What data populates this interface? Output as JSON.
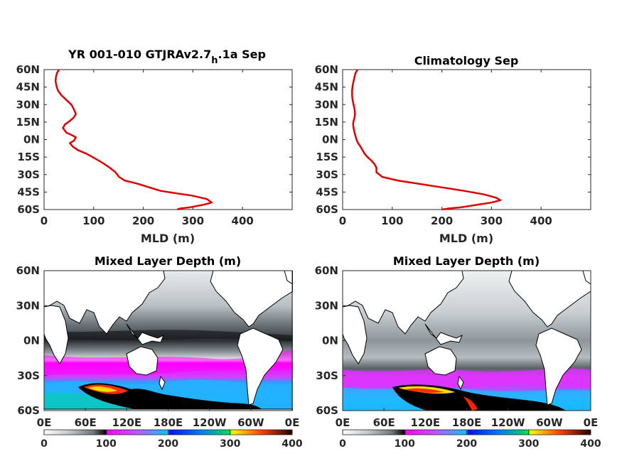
{
  "chart_data": [
    {
      "type": "line",
      "title_main": "YR 001-010 GTJRAv2.7",
      "title_sub": "h",
      "title_tail": ".1a Sep",
      "xlabel": "MLD (m)",
      "ylabel": "",
      "xlim": [
        0,
        500
      ],
      "ylim": [
        -60,
        60
      ],
      "xticks": [
        0,
        100,
        200,
        300,
        400
      ],
      "xtick_labels": [
        "0",
        "100",
        "200",
        "300",
        "400"
      ],
      "yticks": [
        60,
        45,
        30,
        15,
        0,
        -15,
        -30,
        -45,
        -60
      ],
      "ytick_labels": [
        "60N",
        "45N",
        "30N",
        "15N",
        "0N",
        "15S",
        "30S",
        "45S",
        "60S"
      ],
      "series": [
        {
          "color": "#e00000",
          "x": [
            30,
            26,
            24,
            23,
            25,
            28,
            35,
            45,
            55,
            60,
            64,
            60,
            52,
            42,
            38,
            45,
            55,
            64,
            60,
            52,
            58,
            68,
            85,
            102,
            118,
            132,
            144,
            151,
            162,
            190,
            212,
            235,
            265,
            298,
            328,
            338,
            320,
            295,
            275,
            268
          ],
          "y": [
            60,
            57,
            54,
            50,
            46,
            42,
            38,
            34,
            30,
            26,
            22,
            19,
            16,
            13,
            10,
            6,
            4,
            2,
            -1,
            -3,
            -6,
            -9,
            -12,
            -16,
            -20,
            -24,
            -28,
            -32,
            -35,
            -38,
            -41,
            -44,
            -46,
            -48,
            -51,
            -54,
            -56,
            -58,
            -59,
            -60
          ]
        }
      ]
    },
    {
      "type": "line",
      "title_main": "Climatology Sep",
      "xlabel": "MLD (m)",
      "ylabel": "",
      "xlim": [
        0,
        500
      ],
      "ylim": [
        -60,
        60
      ],
      "xticks": [
        0,
        100,
        200,
        300,
        400
      ],
      "xtick_labels": [
        "0",
        "100",
        "200",
        "300",
        "400"
      ],
      "yticks": [
        60,
        45,
        30,
        15,
        0,
        -15,
        -30,
        -45,
        -60
      ],
      "ytick_labels": [
        "60N",
        "45N",
        "30N",
        "15N",
        "0N",
        "15S",
        "30S",
        "45S",
        "60S"
      ],
      "series": [
        {
          "color": "#e00000",
          "x": [
            30,
            26,
            24,
            22,
            20,
            19,
            19,
            20,
            22,
            24,
            25,
            24,
            22,
            21,
            22,
            24,
            26,
            28,
            31,
            36,
            40,
            44,
            50,
            58,
            64,
            68,
            68,
            80,
            110,
            155,
            200,
            245,
            285,
            310,
            318,
            300,
            270,
            240,
            215,
            200
          ],
          "y": [
            60,
            57,
            54,
            50,
            46,
            42,
            38,
            34,
            30,
            26,
            22,
            19,
            16,
            13,
            10,
            6,
            3,
            0,
            -3,
            -6,
            -9,
            -12,
            -15,
            -18,
            -21,
            -24,
            -28,
            -32,
            -35,
            -38,
            -41,
            -44,
            -47,
            -50,
            -52,
            -54,
            -56,
            -58,
            -59,
            -60
          ]
        }
      ]
    },
    {
      "type": "heatmap",
      "title_main": "Mixed Layer Depth (m)",
      "xtick_labels": [
        "0E",
        "60E",
        "120E",
        "180E",
        "120W",
        "60W",
        "0E"
      ],
      "ytick_labels": [
        "60N",
        "30N",
        "0N",
        "30S",
        "60S"
      ],
      "colorbar": {
        "min": 0,
        "max": 400,
        "tick_labels": [
          "0",
          "100",
          "200",
          "300",
          "400"
        ]
      }
    },
    {
      "type": "heatmap",
      "title_main": "Mixed Layer Depth (m)",
      "xtick_labels": [
        "0E",
        "60E",
        "120E",
        "180E",
        "120W",
        "60W",
        "0E"
      ],
      "ytick_labels": [
        "60N",
        "30N",
        "0N",
        "30S",
        "60S"
      ],
      "colorbar": {
        "min": 0,
        "max": 400,
        "tick_labels": [
          "0",
          "100",
          "200",
          "300",
          "400"
        ]
      }
    }
  ]
}
